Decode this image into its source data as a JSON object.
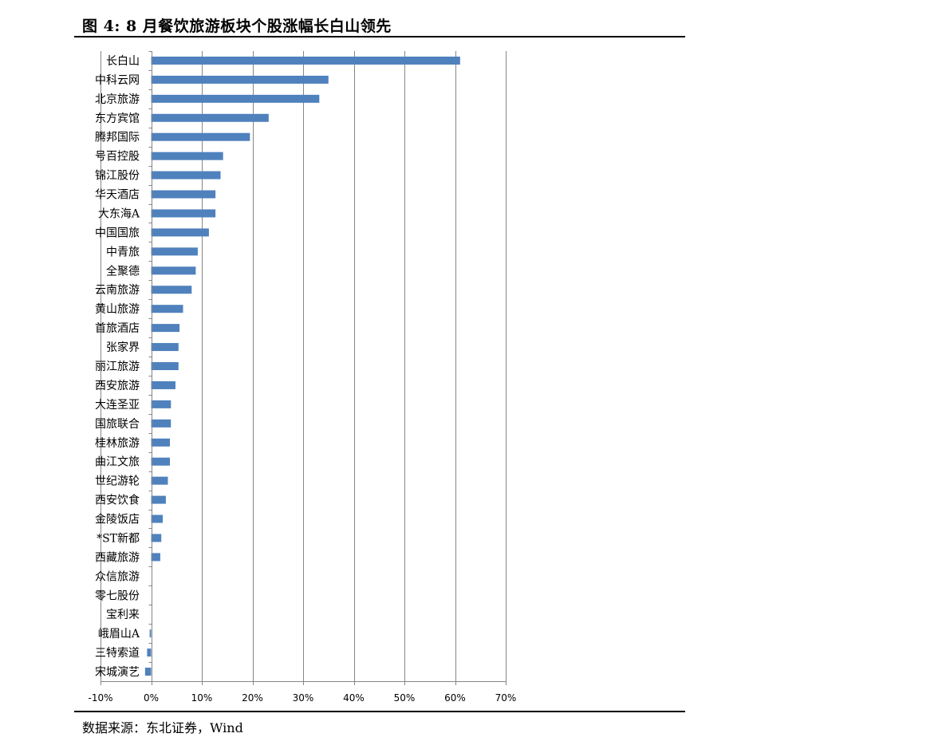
{
  "figure": {
    "title": "图  4:  8 月餐饮旅游板块个股涨幅长白山领先",
    "source": "数据来源：东北证券，Wind"
  },
  "chart_data": {
    "type": "bar",
    "orientation": "horizontal",
    "title": "",
    "xlabel": "",
    "ylabel": "",
    "value_unit": "%",
    "xlim": [
      -10,
      70
    ],
    "xticks": [
      -10,
      0,
      10,
      20,
      30,
      40,
      50,
      60,
      70
    ],
    "xtick_labels": [
      "-10%",
      "0%",
      "10%",
      "20%",
      "30%",
      "40%",
      "50%",
      "60%",
      "70%"
    ],
    "grid": "vertical",
    "legend": "none",
    "bar_color": "#4f81bd",
    "categories": [
      "长白山",
      "中科云网",
      "北京旅游",
      "东方宾馆",
      "腾邦国际",
      "号百控股",
      "锦江股份",
      "华天酒店",
      "大东海A",
      "中国国旅",
      "中青旅",
      "全聚德",
      "云南旅游",
      "黄山旅游",
      "首旅酒店",
      "张家界",
      "丽江旅游",
      "西安旅游",
      "大连圣亚",
      "国旅联合",
      "桂林旅游",
      "曲江文旅",
      "世纪游轮",
      "西安饮食",
      "金陵饭店",
      "*ST新都",
      "西藏旅游",
      "众信旅游",
      "零七股份",
      "宝利来",
      "峨眉山A",
      "三特索道",
      "宋城演艺"
    ],
    "values": [
      61.0,
      35.0,
      33.2,
      23.2,
      19.5,
      14.2,
      13.7,
      12.7,
      12.7,
      11.4,
      9.2,
      8.8,
      8.0,
      6.3,
      5.6,
      5.4,
      5.4,
      4.8,
      3.9,
      3.9,
      3.7,
      3.7,
      3.3,
      2.9,
      2.3,
      2.0,
      1.8,
      0,
      0,
      0,
      -0.3,
      -0.8,
      -1.2
    ]
  }
}
